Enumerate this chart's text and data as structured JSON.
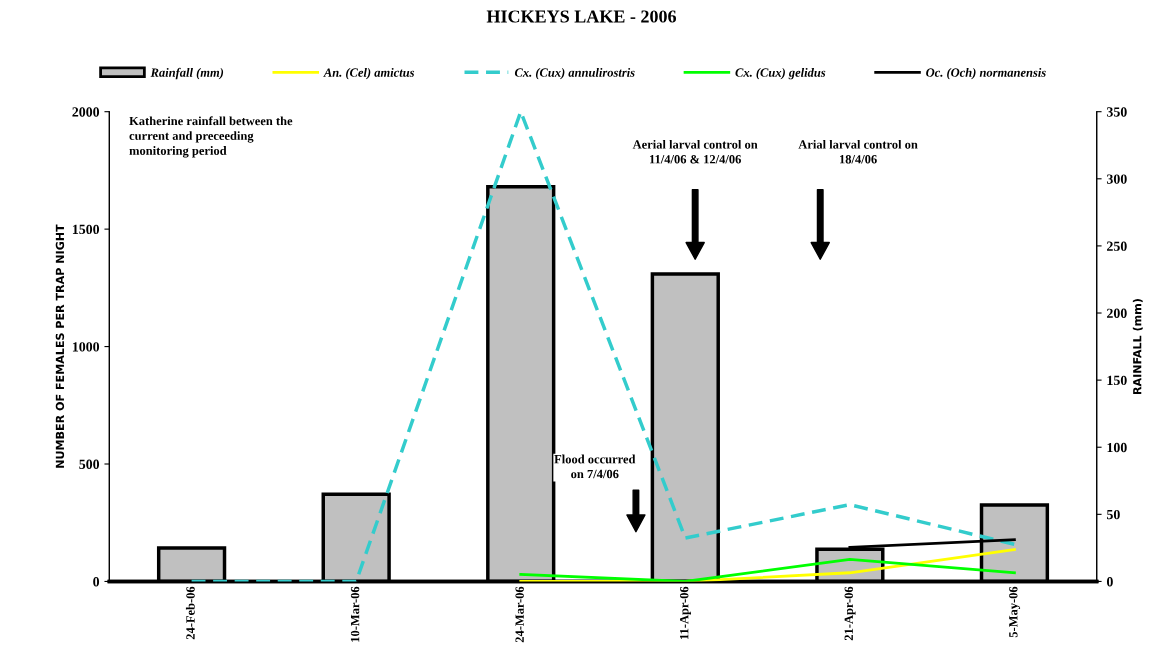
{
  "chart_data": {
    "type": "line",
    "title": "HICKEYS LAKE - 2006",
    "categories": [
      "24-Feb-06",
      "10-Mar-06",
      "24-Mar-06",
      "11-Apr-06",
      "21-Apr-06",
      "5-May-06"
    ],
    "series": [
      {
        "name": "Rainfall (mm)",
        "type": "bar",
        "axis": "y2",
        "color": "#c0c0c0",
        "values": [
          25,
          65,
          294,
          229,
          24,
          57
        ]
      },
      {
        "name": "An. (Cel) amictus",
        "color": "#ffff00",
        "line_style": "solid",
        "values": [
          null,
          null,
          0,
          0,
          37,
          136
        ]
      },
      {
        "name": "Cx. (Cux) annulirostris",
        "color": "#33cccc",
        "line_style": "dashed",
        "values": [
          0,
          0,
          2000,
          185,
          327,
          158
        ]
      },
      {
        "name": "Cx. (Cux) gelidus",
        "color": "#00ff00",
        "line_style": "solid",
        "values": [
          null,
          null,
          30,
          0,
          94,
          37
        ]
      },
      {
        "name": "Oc. (Och) normanensis",
        "color": "#000000",
        "line_style": "solid",
        "values": [
          null,
          null,
          null,
          null,
          145,
          178
        ]
      }
    ],
    "ylabel": "NUMBER OF FEMALES PER TRAP NIGHT",
    "y2label": "RAINFALL (mm)",
    "ylim": [
      0,
      2000
    ],
    "yticks": [
      0,
      500,
      1000,
      1500,
      2000
    ],
    "y2lim": [
      0,
      350
    ],
    "y2ticks": [
      0,
      50,
      100,
      150,
      200,
      250,
      300,
      350
    ],
    "annotations": [
      "Katherine rainfall between the\ncurrent and preceeding\nmonitoring period",
      "Flood occurred\non 7/4/06",
      "Aerial larval control on\n11/4/06 & 12/4/06",
      "Arial larval control on\n18/4/06"
    ],
    "legend": "top",
    "grid": false,
    "marker": "none"
  }
}
